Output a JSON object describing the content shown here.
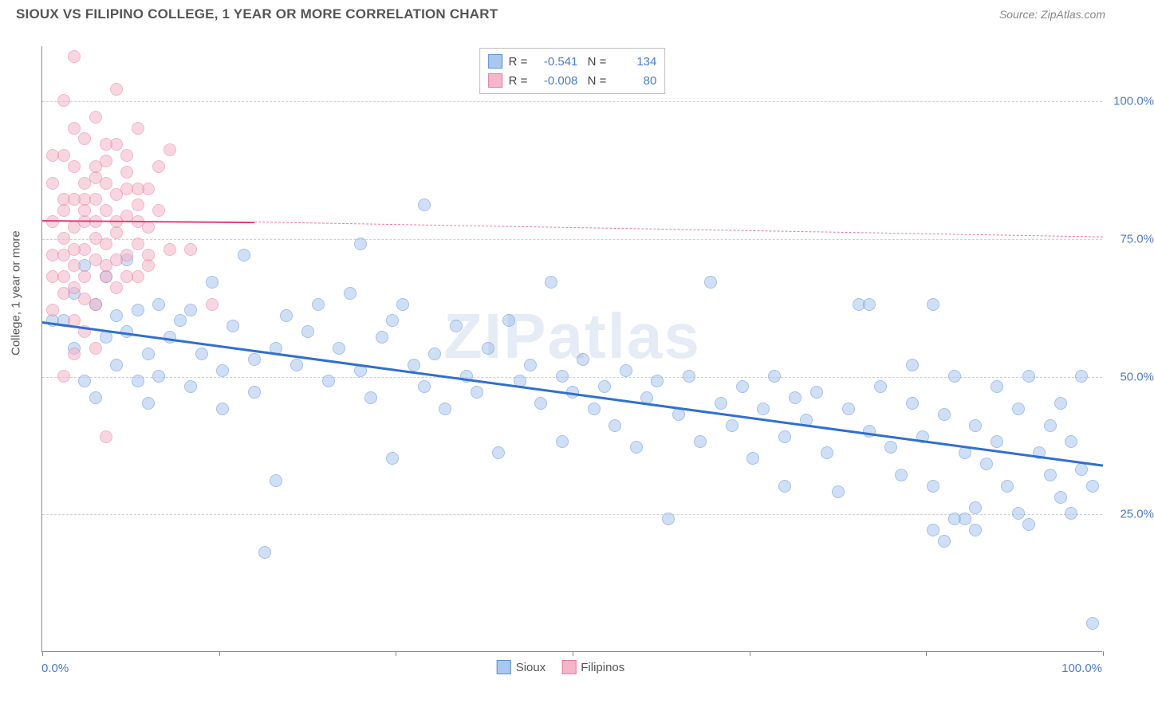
{
  "title": "SIOUX VS FILIPINO COLLEGE, 1 YEAR OR MORE CORRELATION CHART",
  "source": "Source: ZipAtlas.com",
  "watermark": "ZIPatlas",
  "ylabel": "College, 1 year or more",
  "chart": {
    "type": "scatter",
    "xlim": [
      0,
      100
    ],
    "ylim": [
      0,
      110
    ],
    "y_ticks": [
      25,
      50,
      75,
      100
    ],
    "y_tick_labels": [
      "25.0%",
      "50.0%",
      "75.0%",
      "100.0%"
    ],
    "x_tick_positions": [
      0,
      16.7,
      33.3,
      50,
      66.7,
      83.3,
      100
    ],
    "x_min_label": "0.0%",
    "x_max_label": "100.0%",
    "grid_color": "#d8d8d8",
    "background_color": "#ffffff",
    "marker_radius": 8,
    "marker_opacity": 0.55,
    "series": [
      {
        "name": "Sioux",
        "color_fill": "#a9c8ef",
        "color_stroke": "#5b8fd6",
        "R": "-0.541",
        "N": "134",
        "trend": {
          "x1": 0,
          "y1": 60,
          "x2": 100,
          "y2": 34,
          "width": 3,
          "dash": false,
          "color": "#2f6fd0"
        },
        "points": [
          [
            1,
            60
          ],
          [
            2,
            60
          ],
          [
            3,
            55
          ],
          [
            3,
            65
          ],
          [
            4,
            70
          ],
          [
            4,
            49
          ],
          [
            5,
            63
          ],
          [
            5,
            46
          ],
          [
            6,
            68
          ],
          [
            6,
            57
          ],
          [
            7,
            52
          ],
          [
            7,
            61
          ],
          [
            8,
            71
          ],
          [
            8,
            58
          ],
          [
            9,
            49
          ],
          [
            9,
            62
          ],
          [
            10,
            54
          ],
          [
            10,
            45
          ],
          [
            11,
            63
          ],
          [
            11,
            50
          ],
          [
            12,
            57
          ],
          [
            13,
            60
          ],
          [
            14,
            48
          ],
          [
            14,
            62
          ],
          [
            15,
            54
          ],
          [
            16,
            67
          ],
          [
            17,
            51
          ],
          [
            17,
            44
          ],
          [
            18,
            59
          ],
          [
            19,
            72
          ],
          [
            20,
            53
          ],
          [
            20,
            47
          ],
          [
            21,
            18
          ],
          [
            22,
            55
          ],
          [
            22,
            31
          ],
          [
            23,
            61
          ],
          [
            24,
            52
          ],
          [
            25,
            58
          ],
          [
            26,
            63
          ],
          [
            27,
            49
          ],
          [
            28,
            55
          ],
          [
            29,
            65
          ],
          [
            30,
            51
          ],
          [
            30,
            74
          ],
          [
            31,
            46
          ],
          [
            32,
            57
          ],
          [
            33,
            35
          ],
          [
            33,
            60
          ],
          [
            34,
            63
          ],
          [
            35,
            52
          ],
          [
            36,
            48
          ],
          [
            36,
            81
          ],
          [
            37,
            54
          ],
          [
            38,
            44
          ],
          [
            39,
            59
          ],
          [
            40,
            50
          ],
          [
            41,
            47
          ],
          [
            42,
            55
          ],
          [
            43,
            36
          ],
          [
            44,
            60
          ],
          [
            45,
            49
          ],
          [
            46,
            52
          ],
          [
            47,
            45
          ],
          [
            48,
            67
          ],
          [
            49,
            50
          ],
          [
            49,
            38
          ],
          [
            50,
            47
          ],
          [
            51,
            53
          ],
          [
            52,
            44
          ],
          [
            53,
            48
          ],
          [
            54,
            41
          ],
          [
            55,
            51
          ],
          [
            56,
            37
          ],
          [
            57,
            46
          ],
          [
            58,
            49
          ],
          [
            59,
            24
          ],
          [
            60,
            43
          ],
          [
            61,
            50
          ],
          [
            62,
            38
          ],
          [
            63,
            67
          ],
          [
            64,
            45
          ],
          [
            65,
            41
          ],
          [
            66,
            48
          ],
          [
            67,
            35
          ],
          [
            68,
            44
          ],
          [
            69,
            50
          ],
          [
            70,
            39
          ],
          [
            70,
            30
          ],
          [
            71,
            46
          ],
          [
            72,
            42
          ],
          [
            73,
            47
          ],
          [
            74,
            36
          ],
          [
            75,
            29
          ],
          [
            76,
            44
          ],
          [
            77,
            63
          ],
          [
            78,
            40
          ],
          [
            79,
            48
          ],
          [
            80,
            37
          ],
          [
            81,
            32
          ],
          [
            82,
            45
          ],
          [
            82,
            52
          ],
          [
            83,
            39
          ],
          [
            84,
            30
          ],
          [
            84,
            22
          ],
          [
            85,
            43
          ],
          [
            85,
            20
          ],
          [
            86,
            50
          ],
          [
            86,
            24
          ],
          [
            87,
            36
          ],
          [
            88,
            26
          ],
          [
            88,
            41
          ],
          [
            89,
            34
          ],
          [
            90,
            48
          ],
          [
            90,
            38
          ],
          [
            91,
            30
          ],
          [
            92,
            44
          ],
          [
            92,
            25
          ],
          [
            93,
            50
          ],
          [
            93,
            23
          ],
          [
            94,
            36
          ],
          [
            95,
            41
          ],
          [
            95,
            32
          ],
          [
            96,
            28
          ],
          [
            96,
            45
          ],
          [
            97,
            38
          ],
          [
            97,
            25
          ],
          [
            98,
            33
          ],
          [
            98,
            50
          ],
          [
            99,
            30
          ],
          [
            99,
            5
          ],
          [
            87,
            24
          ],
          [
            88,
            22
          ],
          [
            84,
            63
          ],
          [
            78,
            63
          ]
        ]
      },
      {
        "name": "Filipinos",
        "color_fill": "#f4b6c8",
        "color_stroke": "#e77aa0",
        "R": "-0.008",
        "N": "80",
        "trend_solid": {
          "x1": 0,
          "y1": 78.5,
          "x2": 20,
          "y2": 78.2,
          "width": 2.5,
          "color": "#e23f7a"
        },
        "trend_dash": {
          "x1": 20,
          "y1": 78.2,
          "x2": 100,
          "y2": 75.5,
          "width": 1,
          "color": "#e77aa0"
        },
        "points": [
          [
            1,
            78
          ],
          [
            1,
            72
          ],
          [
            1,
            85
          ],
          [
            1,
            68
          ],
          [
            2,
            80
          ],
          [
            2,
            90
          ],
          [
            2,
            75
          ],
          [
            2,
            65
          ],
          [
            2,
            100
          ],
          [
            3,
            88
          ],
          [
            3,
            77
          ],
          [
            3,
            70
          ],
          [
            3,
            108
          ],
          [
            3,
            60
          ],
          [
            4,
            82
          ],
          [
            4,
            93
          ],
          [
            4,
            73
          ],
          [
            4,
            68
          ],
          [
            5,
            86
          ],
          [
            5,
            78
          ],
          [
            5,
            97
          ],
          [
            5,
            71
          ],
          [
            5,
            63
          ],
          [
            6,
            80
          ],
          [
            6,
            89
          ],
          [
            6,
            74
          ],
          [
            6,
            68
          ],
          [
            7,
            92
          ],
          [
            7,
            83
          ],
          [
            7,
            76
          ],
          [
            7,
            66
          ],
          [
            7,
            102
          ],
          [
            8,
            79
          ],
          [
            8,
            87
          ],
          [
            8,
            72
          ],
          [
            8,
            90
          ],
          [
            9,
            81
          ],
          [
            9,
            74
          ],
          [
            9,
            68
          ],
          [
            9,
            95
          ],
          [
            10,
            84
          ],
          [
            10,
            77
          ],
          [
            10,
            70
          ],
          [
            11,
            88
          ],
          [
            11,
            80
          ],
          [
            12,
            73
          ],
          [
            12,
            91
          ],
          [
            3,
            73
          ],
          [
            4,
            78
          ],
          [
            5,
            82
          ],
          [
            6,
            70
          ],
          [
            7,
            78
          ],
          [
            8,
            84
          ],
          [
            9,
            78
          ],
          [
            10,
            72
          ],
          [
            2,
            82
          ],
          [
            3,
            95
          ],
          [
            4,
            85
          ],
          [
            5,
            75
          ],
          [
            6,
            92
          ],
          [
            2,
            72
          ],
          [
            3,
            82
          ],
          [
            4,
            64
          ],
          [
            5,
            88
          ],
          [
            6,
            85
          ],
          [
            7,
            71
          ],
          [
            8,
            68
          ],
          [
            9,
            84
          ],
          [
            1,
            90
          ],
          [
            2,
            68
          ],
          [
            3,
            66
          ],
          [
            4,
            80
          ],
          [
            14,
            73
          ],
          [
            16,
            63
          ],
          [
            5,
            55
          ],
          [
            6,
            39
          ],
          [
            2,
            50
          ],
          [
            3,
            54
          ],
          [
            1,
            62
          ],
          [
            4,
            58
          ]
        ]
      }
    ]
  },
  "legend_bottom": [
    {
      "label": "Sioux",
      "fill": "#a9c8ef",
      "stroke": "#5b8fd6"
    },
    {
      "label": "Filipinos",
      "fill": "#f4b6c8",
      "stroke": "#e77aa0"
    }
  ]
}
